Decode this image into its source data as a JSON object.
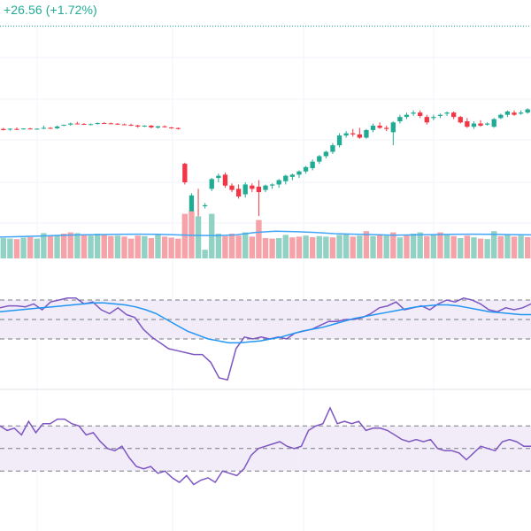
{
  "header": {
    "price_change": "+26.56 (+1.72%)"
  },
  "colors": {
    "up": "#22ab94",
    "down": "#f23645",
    "volume_up": "#92d2c4",
    "volume_down": "#f5a3a8",
    "volume_ma": "#42a5f5",
    "indicator_line": "#7e57c2",
    "indicator_signal": "#2196f3",
    "band_fill": "#ede7f6",
    "band_line": "#787b86",
    "grid": "#f0f3fa",
    "pane_separator": "#e0e3eb"
  },
  "chart_data": {
    "type": "candlestick",
    "panes": [
      "price",
      "volume",
      "oscillator_1",
      "oscillator_2"
    ],
    "candles": [
      {
        "o": 0.55,
        "h": 0.6,
        "l": 0.48,
        "c": 0.5
      },
      {
        "o": 0.52,
        "h": 0.58,
        "l": 0.47,
        "c": 0.56
      },
      {
        "o": 0.55,
        "h": 0.62,
        "l": 0.5,
        "c": 0.53
      },
      {
        "o": 0.56,
        "h": 0.58,
        "l": 0.52,
        "c": 0.57
      },
      {
        "o": 0.57,
        "h": 0.6,
        "l": 0.53,
        "c": 0.55
      },
      {
        "o": 0.55,
        "h": 0.58,
        "l": 0.52,
        "c": 0.56
      },
      {
        "o": 0.57,
        "h": 0.7,
        "l": 0.54,
        "c": 0.6
      },
      {
        "o": 0.6,
        "h": 0.63,
        "l": 0.55,
        "c": 0.58
      },
      {
        "o": 0.58,
        "h": 0.71,
        "l": 0.55,
        "c": 0.66
      },
      {
        "o": 0.72,
        "h": 0.75,
        "l": 0.68,
        "c": 0.74
      },
      {
        "o": 0.75,
        "h": 0.84,
        "l": 0.7,
        "c": 0.8
      },
      {
        "o": 0.8,
        "h": 0.88,
        "l": 0.76,
        "c": 0.78
      },
      {
        "o": 0.78,
        "h": 0.82,
        "l": 0.74,
        "c": 0.76
      },
      {
        "o": 0.76,
        "h": 0.8,
        "l": 0.72,
        "c": 0.77
      },
      {
        "o": 0.78,
        "h": 0.85,
        "l": 0.75,
        "c": 0.82
      },
      {
        "o": 0.82,
        "h": 0.86,
        "l": 0.79,
        "c": 0.81
      },
      {
        "o": 0.81,
        "h": 0.84,
        "l": 0.77,
        "c": 0.79
      },
      {
        "o": 0.79,
        "h": 0.82,
        "l": 0.74,
        "c": 0.76
      },
      {
        "o": 0.76,
        "h": 0.8,
        "l": 0.72,
        "c": 0.74
      },
      {
        "o": 0.74,
        "h": 0.79,
        "l": 0.68,
        "c": 0.71
      },
      {
        "o": 0.71,
        "h": 0.74,
        "l": 0.6,
        "c": 0.66
      },
      {
        "o": 0.66,
        "h": 0.72,
        "l": 0.63,
        "c": 0.7
      },
      {
        "o": 0.7,
        "h": 0.73,
        "l": 0.58,
        "c": 0.62
      },
      {
        "o": 0.61,
        "h": 0.69,
        "l": 0.57,
        "c": 0.67
      },
      {
        "o": 0.67,
        "h": 0.71,
        "l": 0.61,
        "c": 0.64
      },
      {
        "o": 0.62,
        "h": 0.64,
        "l": 0.55,
        "c": 0.59
      },
      {
        "o": 0.59,
        "h": 0.62,
        "l": 0.52,
        "c": 0.56
      },
      {
        "o": -1.05,
        "h": -1.0,
        "l": -2.0,
        "c": -1.9
      },
      {
        "o": -3.4,
        "h": -2.4,
        "l": -4.1,
        "c": -2.5
      },
      {
        "o": -3.7,
        "h": -2.2,
        "l": -4.4,
        "c": -4.1
      },
      {
        "o": -3.0,
        "h": -2.85,
        "l": -3.1,
        "c": -2.95
      },
      {
        "o": -2.2,
        "h": -1.7,
        "l": -2.3,
        "c": -1.75
      },
      {
        "o": -1.7,
        "h": -1.5,
        "l": -1.9,
        "c": -1.6
      },
      {
        "o": -1.55,
        "h": -1.45,
        "l": -2.15,
        "c": -2.05
      },
      {
        "o": -2.05,
        "h": -1.95,
        "l": -2.35,
        "c": -2.25
      },
      {
        "o": -2.2,
        "h": -2.0,
        "l": -2.65,
        "c": -2.55
      },
      {
        "o": -2.45,
        "h": -1.9,
        "l": -2.6,
        "c": -2.0
      },
      {
        "o": -2.05,
        "h": -1.95,
        "l": -2.35,
        "c": -2.2
      },
      {
        "o": -2.1,
        "h": -1.8,
        "l": -3.45,
        "c": -2.35
      },
      {
        "o": -2.25,
        "h": -2.0,
        "l": -2.35,
        "c": -2.05
      },
      {
        "o": -2.05,
        "h": -1.95,
        "l": -2.2,
        "c": -2.0
      },
      {
        "o": -2.0,
        "h": -1.75,
        "l": -2.15,
        "c": -1.8
      },
      {
        "o": -1.85,
        "h": -1.55,
        "l": -2.0,
        "c": -1.6
      },
      {
        "o": -1.65,
        "h": -1.5,
        "l": -1.8,
        "c": -1.55
      },
      {
        "o": -1.55,
        "h": -1.35,
        "l": -1.7,
        "c": -1.4
      },
      {
        "o": -1.4,
        "h": -1.15,
        "l": -1.5,
        "c": -1.2
      },
      {
        "o": -1.25,
        "h": -0.85,
        "l": -1.35,
        "c": -0.95
      },
      {
        "o": -0.95,
        "h": -0.65,
        "l": -1.05,
        "c": -0.7
      },
      {
        "o": -0.7,
        "h": -0.45,
        "l": -0.8,
        "c": -0.5
      },
      {
        "o": -0.5,
        "h": -0.1,
        "l": -0.6,
        "c": -0.2
      },
      {
        "o": -0.2,
        "h": 0.35,
        "l": -0.3,
        "c": 0.25
      },
      {
        "o": 0.25,
        "h": 0.45,
        "l": 0.15,
        "c": 0.35
      },
      {
        "o": 0.35,
        "h": 0.55,
        "l": 0.2,
        "c": 0.3
      },
      {
        "o": 0.3,
        "h": 0.6,
        "l": 0.1,
        "c": 0.15
      },
      {
        "o": 0.15,
        "h": 0.55,
        "l": 0.1,
        "c": 0.5
      },
      {
        "o": 0.5,
        "h": 0.8,
        "l": 0.4,
        "c": 0.7
      },
      {
        "o": 0.7,
        "h": 0.85,
        "l": 0.55,
        "c": 0.6
      },
      {
        "o": 0.6,
        "h": 0.7,
        "l": 0.45,
        "c": 0.55
      },
      {
        "o": 0.4,
        "h": 0.9,
        "l": -0.2,
        "c": 0.85
      },
      {
        "o": 0.9,
        "h": 1.2,
        "l": 0.8,
        "c": 1.1
      },
      {
        "o": 1.1,
        "h": 1.3,
        "l": 1.0,
        "c": 1.2
      },
      {
        "o": 1.25,
        "h": 1.4,
        "l": 1.15,
        "c": 1.3
      },
      {
        "o": 1.3,
        "h": 1.4,
        "l": 1.05,
        "c": 1.15
      },
      {
        "o": 1.1,
        "h": 1.2,
        "l": 0.75,
        "c": 0.85
      },
      {
        "o": 1.05,
        "h": 1.2,
        "l": 0.95,
        "c": 1.1
      },
      {
        "o": 1.15,
        "h": 1.25,
        "l": 1.05,
        "c": 1.2
      },
      {
        "o": 1.25,
        "h": 1.35,
        "l": 1.15,
        "c": 1.3
      },
      {
        "o": 1.3,
        "h": 1.35,
        "l": 1.0,
        "c": 1.1
      },
      {
        "o": 1.1,
        "h": 1.15,
        "l": 0.8,
        "c": 0.85
      },
      {
        "o": 0.9,
        "h": 1.05,
        "l": 0.6,
        "c": 0.65
      },
      {
        "o": 0.65,
        "h": 0.9,
        "l": 0.55,
        "c": 0.8
      },
      {
        "o": 0.8,
        "h": 0.95,
        "l": 0.65,
        "c": 0.7
      },
      {
        "o": 0.75,
        "h": 0.85,
        "l": 0.7,
        "c": 0.8
      },
      {
        "o": 0.65,
        "h": 1.05,
        "l": 0.6,
        "c": 1.0
      },
      {
        "o": 1.05,
        "h": 1.25,
        "l": 1.0,
        "c": 1.2
      },
      {
        "o": 1.2,
        "h": 1.4,
        "l": 1.1,
        "c": 1.35
      },
      {
        "o": 1.3,
        "h": 1.4,
        "l": 1.15,
        "c": 1.2
      },
      {
        "o": 1.25,
        "h": 1.4,
        "l": 1.2,
        "c": 1.3
      },
      {
        "o": 1.3,
        "h": 1.5,
        "l": 1.25,
        "c": 1.45
      }
    ],
    "volume": [
      {
        "v": 0.82,
        "up": true
      },
      {
        "v": 0.8,
        "up": true
      },
      {
        "v": 0.78,
        "up": false
      },
      {
        "v": 0.84,
        "up": true
      },
      {
        "v": 0.86,
        "up": false
      },
      {
        "v": 0.8,
        "up": true
      },
      {
        "v": 1.02,
        "up": true
      },
      {
        "v": 0.92,
        "up": false
      },
      {
        "v": 0.95,
        "up": true
      },
      {
        "v": 1.0,
        "up": false
      },
      {
        "v": 1.05,
        "up": false
      },
      {
        "v": 1.02,
        "up": true
      },
      {
        "v": 0.95,
        "up": false
      },
      {
        "v": 0.92,
        "up": true
      },
      {
        "v": 1.0,
        "up": true
      },
      {
        "v": 0.96,
        "up": false
      },
      {
        "v": 0.9,
        "up": false
      },
      {
        "v": 0.92,
        "up": true
      },
      {
        "v": 0.88,
        "up": false
      },
      {
        "v": 0.8,
        "up": false
      },
      {
        "v": 0.92,
        "up": false
      },
      {
        "v": 0.9,
        "up": true
      },
      {
        "v": 0.82,
        "up": false
      },
      {
        "v": 0.95,
        "up": true
      },
      {
        "v": 0.88,
        "up": false
      },
      {
        "v": 0.84,
        "up": false
      },
      {
        "v": 0.8,
        "up": false
      },
      {
        "v": 1.8,
        "up": false
      },
      {
        "v": 1.9,
        "up": false
      },
      {
        "v": 1.7,
        "up": true
      },
      {
        "v": 0.35,
        "up": true
      },
      {
        "v": 1.8,
        "up": true
      },
      {
        "v": 1.0,
        "up": true
      },
      {
        "v": 0.9,
        "up": false
      },
      {
        "v": 1.0,
        "up": false
      },
      {
        "v": 0.92,
        "up": false
      },
      {
        "v": 1.05,
        "up": true
      },
      {
        "v": 0.88,
        "up": false
      },
      {
        "v": 1.55,
        "up": false
      },
      {
        "v": 0.82,
        "up": false
      },
      {
        "v": 0.8,
        "up": false
      },
      {
        "v": 0.82,
        "up": true
      },
      {
        "v": 0.95,
        "up": true
      },
      {
        "v": 0.85,
        "up": false
      },
      {
        "v": 0.88,
        "up": false
      },
      {
        "v": 0.92,
        "up": true
      },
      {
        "v": 0.86,
        "up": false
      },
      {
        "v": 0.9,
        "up": true
      },
      {
        "v": 0.88,
        "up": true
      },
      {
        "v": 0.85,
        "up": false
      },
      {
        "v": 0.95,
        "up": true
      },
      {
        "v": 1.0,
        "up": true
      },
      {
        "v": 0.88,
        "up": false
      },
      {
        "v": 0.92,
        "up": true
      },
      {
        "v": 1.1,
        "up": false
      },
      {
        "v": 0.9,
        "up": true
      },
      {
        "v": 0.98,
        "up": false
      },
      {
        "v": 0.92,
        "up": true
      },
      {
        "v": 1.05,
        "up": false
      },
      {
        "v": 0.85,
        "up": true
      },
      {
        "v": 0.95,
        "up": false
      },
      {
        "v": 1.0,
        "up": true
      },
      {
        "v": 1.05,
        "up": true
      },
      {
        "v": 0.9,
        "up": false
      },
      {
        "v": 0.95,
        "up": true
      },
      {
        "v": 1.05,
        "up": false
      },
      {
        "v": 0.98,
        "up": true
      },
      {
        "v": 0.9,
        "up": false
      },
      {
        "v": 0.82,
        "up": true
      },
      {
        "v": 0.92,
        "up": false
      },
      {
        "v": 0.85,
        "up": true
      },
      {
        "v": 0.8,
        "up": false
      },
      {
        "v": 0.78,
        "up": true
      },
      {
        "v": 1.1,
        "up": true
      },
      {
        "v": 0.9,
        "up": false
      },
      {
        "v": 0.95,
        "up": true
      },
      {
        "v": 0.88,
        "up": false
      },
      {
        "v": 0.92,
        "up": true
      },
      {
        "v": 0.86,
        "up": false
      }
    ],
    "volume_ma": [
      0.86,
      0.88,
      0.9,
      0.93,
      0.95,
      0.96,
      0.97,
      0.98,
      0.97,
      0.95,
      0.93,
      0.92,
      0.95,
      1.05,
      1.1,
      1.08,
      1.05,
      1.0,
      0.98,
      0.96,
      0.94,
      0.95,
      0.96,
      0.97,
      0.98,
      0.97,
      0.96,
      0.95
    ],
    "oscillator_1": {
      "bands": [
        70,
        50,
        30
      ],
      "line": [
        62,
        64,
        64,
        63,
        66,
        60,
        68,
        70,
        72,
        72,
        66,
        68,
        60,
        56,
        62,
        55,
        52,
        40,
        32,
        26,
        20,
        18,
        16,
        14,
        14,
        6,
        -10,
        -12,
        20,
        32,
        30,
        32,
        30,
        32,
        30,
        36,
        38,
        40,
        44,
        48,
        48,
        50,
        50,
        52,
        56,
        62,
        64,
        68,
        60,
        62,
        64,
        60,
        66,
        70,
        68,
        72,
        70,
        66,
        60,
        58,
        62,
        60,
        62,
        66
      ],
      "signal": [
        58,
        59,
        60,
        61,
        62,
        63,
        64,
        65,
        66,
        67,
        67,
        66,
        65,
        63,
        60,
        56,
        50,
        44,
        38,
        34,
        30,
        28,
        26,
        26,
        27,
        28,
        30,
        32,
        35,
        38,
        40,
        42,
        45,
        48,
        51,
        53,
        55,
        57,
        59,
        61,
        63,
        64,
        65,
        65,
        64,
        62,
        60,
        58,
        57,
        56,
        55,
        55
      ]
    },
    "oscillator_2": {
      "bands": [
        70,
        50,
        30
      ],
      "line": [
        70,
        66,
        68,
        62,
        74,
        64,
        72,
        72,
        76,
        76,
        72,
        70,
        62,
        64,
        56,
        50,
        48,
        52,
        42,
        34,
        32,
        34,
        28,
        30,
        24,
        20,
        26,
        18,
        22,
        24,
        20,
        30,
        28,
        26,
        32,
        44,
        50,
        52,
        54,
        56,
        52,
        50,
        52,
        66,
        70,
        72,
        86,
        72,
        74,
        72,
        74,
        66,
        68,
        68,
        66,
        62,
        58,
        56,
        58,
        56,
        58,
        50,
        48,
        48,
        46,
        40,
        46,
        52,
        50,
        48,
        56,
        58,
        56,
        52,
        52
      ]
    }
  }
}
